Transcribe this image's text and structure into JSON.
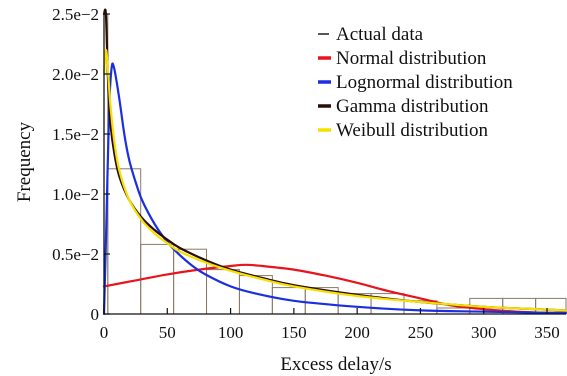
{
  "chart_data": {
    "type": "histogram_with_fitted_curves",
    "title": "",
    "xlabel": "Excess delay/s",
    "ylabel": "Frequency",
    "xlim": [
      0,
      365
    ],
    "ylim": [
      0,
      0.025
    ],
    "x_ticks": [
      0,
      50,
      100,
      150,
      200,
      250,
      300,
      350
    ],
    "x_tick_labels": [
      "0",
      "50",
      "100",
      "150",
      "200",
      "250",
      "300",
      "350"
    ],
    "y_ticks": [
      0,
      0.005,
      0.01,
      0.015,
      0.02,
      0.025
    ],
    "y_tick_labels": [
      "0",
      "0.5e−2",
      "1.0e−2",
      "1.5e−2",
      "2.0e−2",
      "2.5e−2"
    ],
    "grid": false,
    "legend_position": "top-right",
    "histogram": {
      "name": "Actual data",
      "bin_width": 26,
      "bins": [
        {
          "x0": 0,
          "x1": 3,
          "y": 0.025
        },
        {
          "x0": 3,
          "x1": 29,
          "y": 0.0121
        },
        {
          "x0": 29,
          "x1": 55,
          "y": 0.0058
        },
        {
          "x0": 55,
          "x1": 81,
          "y": 0.0054
        },
        {
          "x0": 81,
          "x1": 107,
          "y": 0.0037
        },
        {
          "x0": 107,
          "x1": 133,
          "y": 0.0032
        },
        {
          "x0": 133,
          "x1": 159,
          "y": 0.0022
        },
        {
          "x0": 159,
          "x1": 185,
          "y": 0.0022
        },
        {
          "x0": 185,
          "x1": 211,
          "y": 0.0017
        },
        {
          "x0": 211,
          "x1": 237,
          "y": 0.0017
        },
        {
          "x0": 237,
          "x1": 263,
          "y": 0.0011
        },
        {
          "x0": 263,
          "x1": 289,
          "y": 0.0005
        },
        {
          "x0": 289,
          "x1": 315,
          "y": 0.0013
        },
        {
          "x0": 315,
          "x1": 341,
          "y": 0.0013
        },
        {
          "x0": 341,
          "x1": 365,
          "y": 0.0013
        }
      ]
    },
    "series": [
      {
        "name": "Normal distribution",
        "color": "#e8141d",
        "x": [
          0,
          25,
          50,
          75,
          100,
          112,
          125,
          150,
          175,
          200,
          225,
          250,
          275,
          300,
          325,
          350,
          365
        ],
        "y": [
          0.0023,
          0.0028,
          0.0033,
          0.0037,
          0.004,
          0.0041,
          0.004,
          0.0037,
          0.0032,
          0.0026,
          0.0019,
          0.0013,
          0.0007,
          0.0004,
          0.0002,
          0.0001,
          0.0001
        ]
      },
      {
        "name": "Lognormal distribution",
        "color": "#1c2fe0",
        "x": [
          0,
          2,
          4,
          6,
          8,
          12,
          16,
          20,
          25,
          30,
          40,
          50,
          60,
          70,
          80,
          100,
          120,
          150,
          200,
          250,
          300,
          350,
          365
        ],
        "y": [
          0,
          0.008,
          0.017,
          0.0205,
          0.0205,
          0.018,
          0.015,
          0.0128,
          0.011,
          0.0095,
          0.0075,
          0.006,
          0.0049,
          0.004,
          0.0033,
          0.0023,
          0.0017,
          0.0011,
          0.0006,
          0.0003,
          0.0002,
          0.0001,
          0.0001
        ]
      },
      {
        "name": "Gamma distribution",
        "color": "#2a0d06",
        "x": [
          0,
          1.5,
          3,
          5,
          8,
          12,
          20,
          30,
          40,
          50,
          60,
          80,
          100,
          125,
          150,
          200,
          250,
          300,
          365
        ],
        "y": [
          0.025,
          0.025,
          0.02,
          0.016,
          0.0135,
          0.0115,
          0.0095,
          0.008,
          0.007,
          0.0062,
          0.0055,
          0.0045,
          0.0037,
          0.003,
          0.0024,
          0.0016,
          0.001,
          0.0006,
          0.0003
        ]
      },
      {
        "name": "Weibull distribution",
        "color": "#f5e000",
        "x": [
          0,
          1.5,
          3,
          5,
          8,
          12,
          20,
          30,
          40,
          50,
          60,
          80,
          100,
          125,
          150,
          200,
          250,
          300,
          365
        ],
        "y": [
          0.02,
          0.022,
          0.0205,
          0.0175,
          0.0145,
          0.012,
          0.0095,
          0.0078,
          0.0067,
          0.0059,
          0.0052,
          0.0043,
          0.0036,
          0.0029,
          0.0023,
          0.0015,
          0.001,
          0.0006,
          0.0003
        ]
      }
    ]
  }
}
